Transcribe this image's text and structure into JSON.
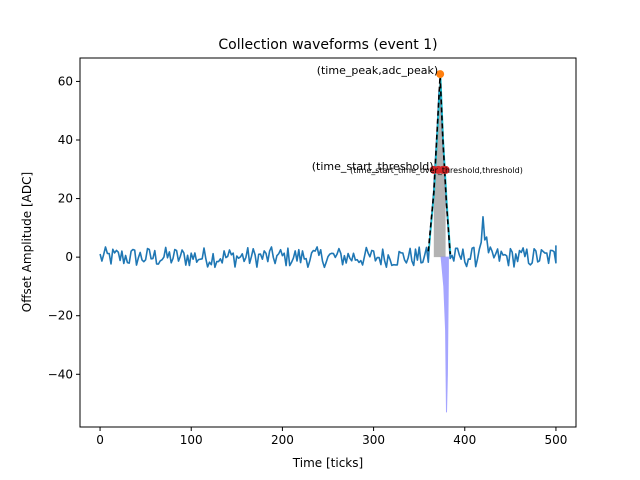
{
  "chart_data": {
    "type": "line",
    "title": "Collection waveforms (event 1)",
    "xlabel": "Time [ticks]",
    "ylabel": "Offset Amplitude [ADC]",
    "xlim": [
      -22,
      522
    ],
    "ylim": [
      -58,
      68
    ],
    "x_ticks": [
      0,
      100,
      200,
      300,
      400,
      500
    ],
    "y_ticks": [
      -40,
      -20,
      0,
      20,
      40,
      60
    ],
    "x_tick_labels": [
      "0",
      "100",
      "200",
      "300",
      "400",
      "500"
    ],
    "y_tick_labels": [
      "−40",
      "−20",
      "0",
      "20",
      "40",
      "60"
    ],
    "grid": false,
    "colors": {
      "waveform": "#1f77b4",
      "fit": "#000000",
      "peak_marker": "#ff7f0e",
      "threshold_marker": "#d62728",
      "integral_fill": "#a0a0a0",
      "negative_lobe": "#8080ff",
      "cyan_trace": "#17becf"
    },
    "series": [
      {
        "style": "noisy-waveform",
        "x_range": [
          0,
          500
        ],
        "baseline": 0,
        "noise_amplitude": 3.5,
        "bump": {
          "x": 420,
          "y": 11
        }
      },
      {
        "style": "pulse",
        "x": [
          360,
          366,
          370,
          373,
          376,
          380,
          384
        ],
        "y": [
          2,
          22,
          45,
          62,
          40,
          18,
          1
        ]
      },
      {
        "style": "negative-lobe",
        "x": [
          374,
          377,
          379,
          380,
          381,
          382
        ],
        "y": [
          0,
          -10,
          -25,
          -53,
          -40,
          -5
        ]
      }
    ],
    "points": {
      "peak": {
        "x": 373,
        "y": 62.5
      },
      "thresholds": [
        {
          "x": 366,
          "y": 29.8
        },
        {
          "x": 371,
          "y": 29.8
        },
        {
          "x": 376,
          "y": 29.8
        },
        {
          "x": 379,
          "y": 29.8
        }
      ]
    },
    "annotations": [
      {
        "text": "(time_peak,adc_peak)",
        "x": 373,
        "y": 62.5,
        "size": "big",
        "anchor": "end"
      },
      {
        "text": "(time_start_threshold)",
        "x": 368,
        "y": 29.8,
        "size": "big",
        "anchor": "end"
      },
      {
        "text": "(time_start_time_over_threshold,threshold)",
        "x": 369,
        "y": 29.8,
        "size": "small",
        "anchor": "middle"
      }
    ]
  }
}
